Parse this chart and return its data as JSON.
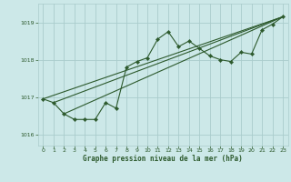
{
  "title": "Graphe pression niveau de la mer (hPa)",
  "background_color": "#cce8e8",
  "grid_color": "#aacccc",
  "line_color": "#2d5a2d",
  "marker_color": "#2d5a2d",
  "xlim": [
    -0.5,
    23.5
  ],
  "ylim": [
    1015.7,
    1019.5
  ],
  "yticks": [
    1016,
    1017,
    1018,
    1019
  ],
  "xticks": [
    0,
    1,
    2,
    3,
    4,
    5,
    6,
    7,
    8,
    9,
    10,
    11,
    12,
    13,
    14,
    15,
    16,
    17,
    18,
    19,
    20,
    21,
    22,
    23
  ],
  "series1_x": [
    0,
    1,
    2,
    3,
    4,
    5,
    6,
    7,
    8,
    9,
    10,
    11,
    12,
    13,
    14,
    15,
    16,
    17,
    18,
    19,
    20,
    21,
    22,
    23
  ],
  "series1_y": [
    1016.95,
    1016.85,
    1016.55,
    1016.4,
    1016.4,
    1016.4,
    1016.85,
    1016.7,
    1017.8,
    1017.95,
    1018.05,
    1018.55,
    1018.75,
    1018.35,
    1018.5,
    1018.3,
    1018.1,
    1018.0,
    1017.95,
    1018.2,
    1018.15,
    1018.8,
    1018.95,
    1019.15
  ],
  "trend1_x": [
    0,
    23
  ],
  "trend1_y": [
    1016.95,
    1019.15
  ],
  "trend2_x": [
    1,
    23
  ],
  "trend2_y": [
    1016.85,
    1019.15
  ],
  "trend3_x": [
    2,
    23
  ],
  "trend3_y": [
    1016.55,
    1019.15
  ]
}
